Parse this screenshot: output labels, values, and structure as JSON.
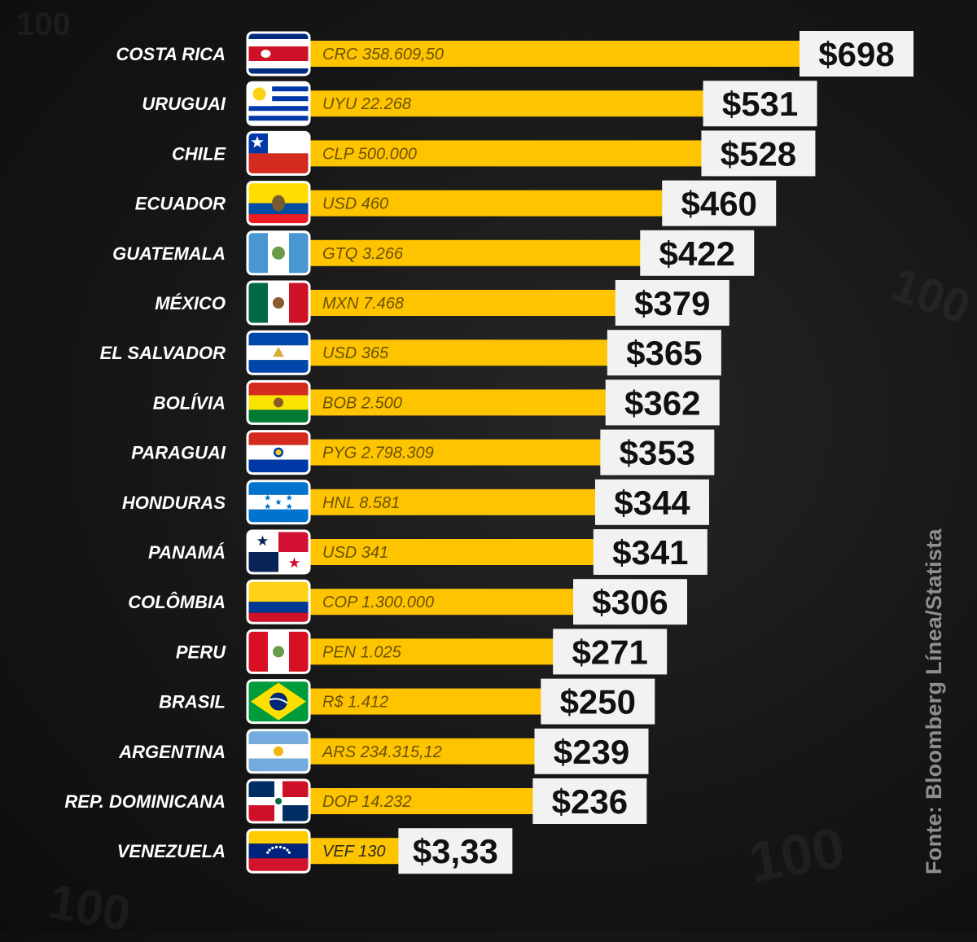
{
  "source": "Fonte: Bloomberg Línea/Statista",
  "colors": {
    "bar": "#ffc400",
    "value_box": "#f2f2f2",
    "value_text": "#111111",
    "country_text": "#ffffff",
    "local_text": "#6b5200"
  },
  "chart_data": {
    "type": "bar",
    "orientation": "horizontal",
    "title": "",
    "xlabel": "",
    "ylabel": "",
    "categories": [
      "COSTA RICA",
      "URUGUAI",
      "CHILE",
      "ECUADOR",
      "GUATEMALA",
      "MÉXICO",
      "EL SALVADOR",
      "BOLÍVIA",
      "PARAGUAI",
      "HONDURAS",
      "PANAMÁ",
      "COLÔMBIA",
      "PERU",
      "BRASIL",
      "ARGENTINA",
      "REP. DOMINICANA",
      "VENEZUELA"
    ],
    "flags": [
      "costa-rica",
      "uruguay",
      "chile",
      "ecuador",
      "guatemala",
      "mexico",
      "el-salvador",
      "bolivia",
      "paraguay",
      "honduras",
      "panama",
      "colombia",
      "peru",
      "brazil",
      "argentina",
      "dominican-republic",
      "venezuela"
    ],
    "values": [
      698,
      531,
      528,
      460,
      422,
      379,
      365,
      362,
      353,
      344,
      341,
      306,
      271,
      250,
      239,
      236,
      3.33
    ],
    "value_labels": [
      "$698",
      "$531",
      "$528",
      "$460",
      "$422",
      "$379",
      "$365",
      "$362",
      "$353",
      "$344",
      "$341",
      "$306",
      "$271",
      "$250",
      "$239",
      "$236",
      "$3,33"
    ],
    "local_labels": [
      "CRC 358.609,50",
      "UYU 22.268",
      "CLP 500.000",
      "USD 460",
      "GTQ 3.266",
      "MXN 7.468",
      "USD 365",
      "BOB 2.500",
      "PYG 2.798.309",
      "HNL 8.581",
      "USD 341",
      "COP 1.300.000",
      "PEN 1.025",
      "R$ 1.412",
      "ARS 234.315,12",
      "DOP 14.232",
      "VEF 130"
    ],
    "xlim": [
      0,
      698
    ],
    "grid": false,
    "legend": "none"
  }
}
